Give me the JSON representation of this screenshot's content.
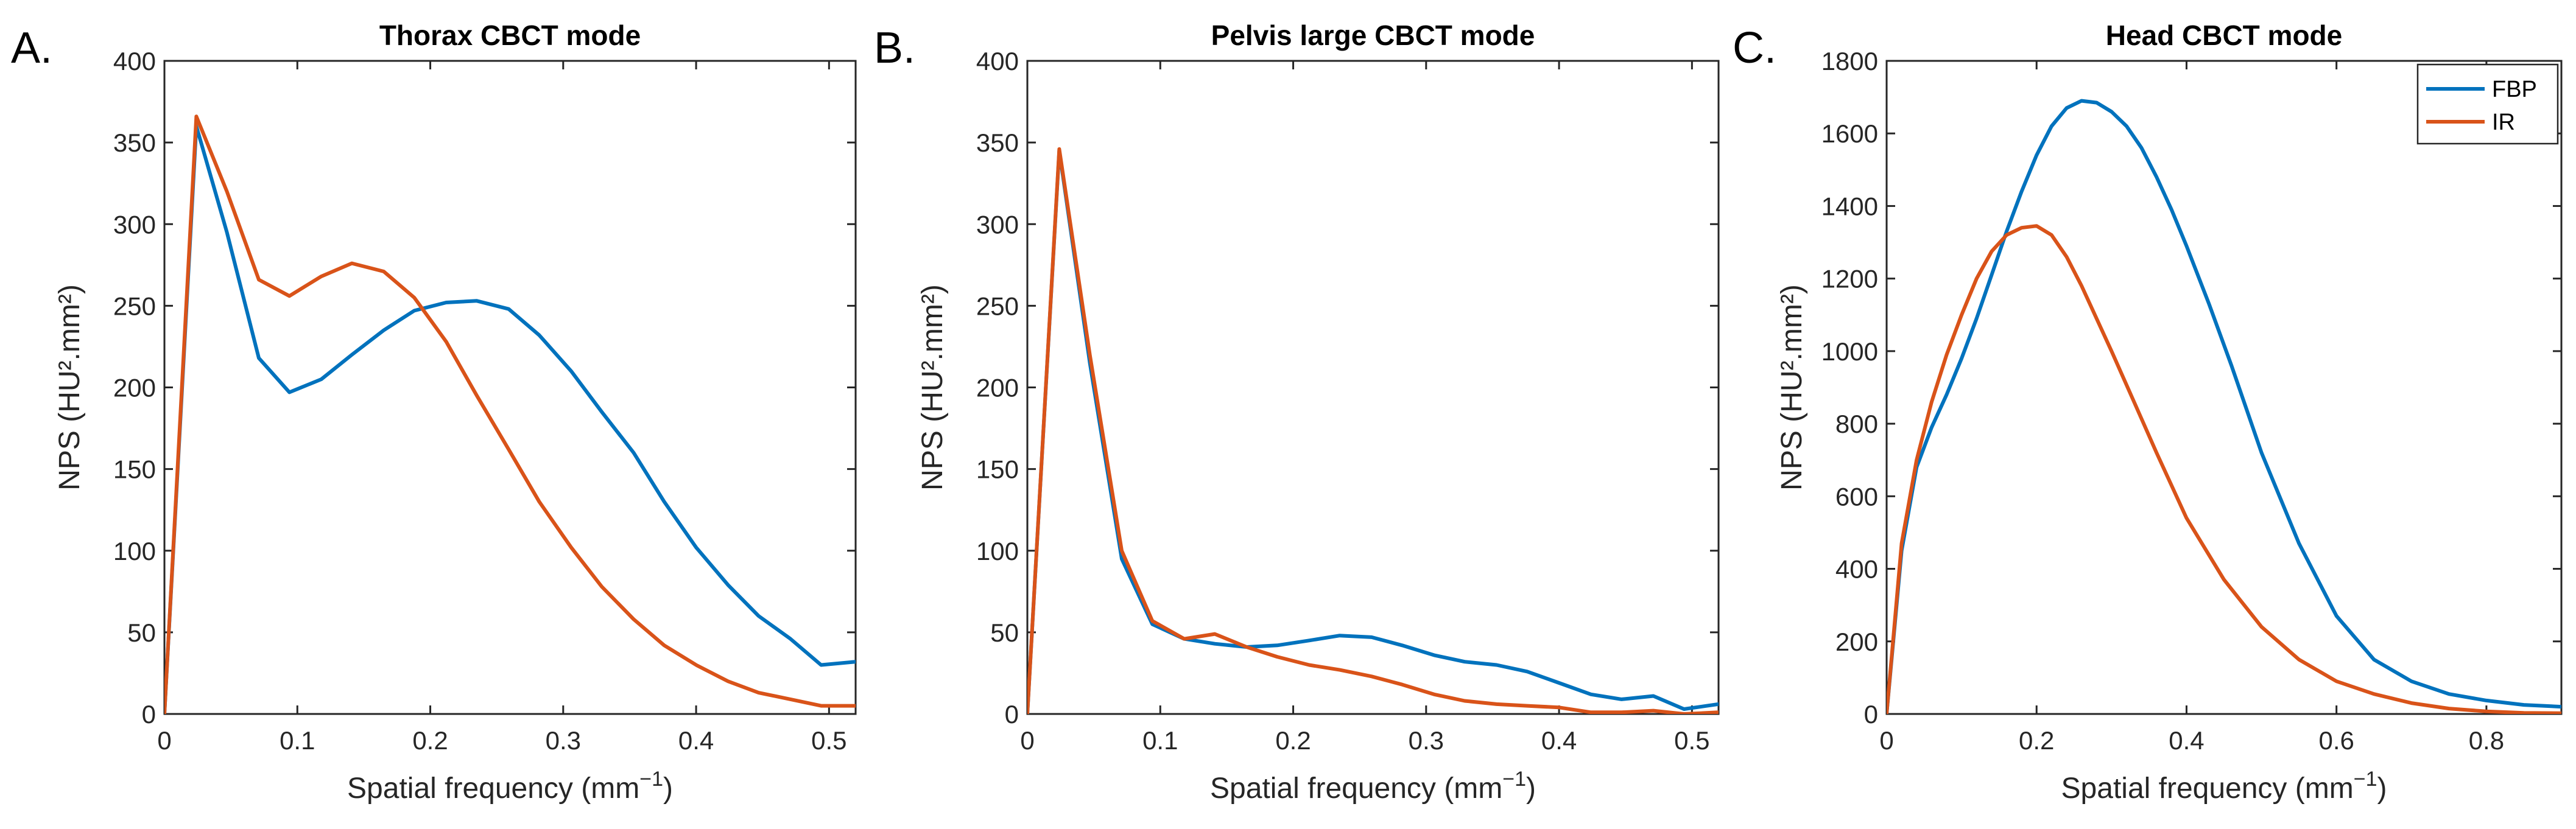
{
  "chart_data": [
    {
      "type": "line",
      "panel_letter": "A.",
      "title": "Thorax CBCT mode",
      "xlabel": "Spatial frequency (mm",
      "xlabel_sup": "−1",
      "xlabel_end": ")",
      "ylabel": "NPS (HU².mm²)",
      "xlim": [
        0,
        0.52
      ],
      "ylim": [
        0,
        400
      ],
      "xticks": [
        0,
        0.1,
        0.2,
        0.3,
        0.4,
        0.5
      ],
      "xtick_labels": [
        "0",
        "0.1",
        "0.2",
        "0.3",
        "0.4",
        "0.5"
      ],
      "yticks": [
        0,
        50,
        100,
        150,
        200,
        250,
        300,
        350,
        400
      ],
      "ytick_labels": [
        "0",
        "50",
        "100",
        "150",
        "200",
        "250",
        "300",
        "350",
        "400"
      ],
      "legend": null,
      "series": [
        {
          "name": "FBP",
          "color": "#0072BD",
          "x": [
            0,
            0.024,
            0.047,
            0.071,
            0.094,
            0.118,
            0.141,
            0.165,
            0.188,
            0.212,
            0.235,
            0.259,
            0.282,
            0.306,
            0.329,
            0.353,
            0.376,
            0.4,
            0.424,
            0.447,
            0.471,
            0.494,
            0.52
          ],
          "y": [
            0,
            360,
            295,
            218,
            197,
            205,
            220,
            235,
            247,
            252,
            253,
            248,
            232,
            210,
            185,
            160,
            130,
            102,
            79,
            60,
            46,
            30,
            32
          ]
        },
        {
          "name": "IR",
          "color": "#D95319",
          "x": [
            0,
            0.024,
            0.047,
            0.071,
            0.094,
            0.118,
            0.141,
            0.165,
            0.188,
            0.212,
            0.235,
            0.259,
            0.282,
            0.306,
            0.329,
            0.353,
            0.376,
            0.4,
            0.424,
            0.447,
            0.471,
            0.494,
            0.52
          ],
          "y": [
            0,
            366,
            320,
            266,
            256,
            268,
            276,
            271,
            255,
            228,
            195,
            162,
            130,
            102,
            78,
            58,
            42,
            30,
            20,
            13,
            9,
            5,
            5
          ]
        }
      ]
    },
    {
      "type": "line",
      "panel_letter": "B.",
      "title": "Pelvis large CBCT mode",
      "xlabel": "Spatial frequency (mm",
      "xlabel_sup": "−1",
      "xlabel_end": ")",
      "ylabel": "NPS (HU².mm²)",
      "xlim": [
        0,
        0.52
      ],
      "ylim": [
        0,
        400
      ],
      "xticks": [
        0,
        0.1,
        0.2,
        0.3,
        0.4,
        0.5
      ],
      "xtick_labels": [
        "0",
        "0.1",
        "0.2",
        "0.3",
        "0.4",
        "0.5"
      ],
      "yticks": [
        0,
        50,
        100,
        150,
        200,
        250,
        300,
        350,
        400
      ],
      "ytick_labels": [
        "0",
        "50",
        "100",
        "150",
        "200",
        "250",
        "300",
        "350",
        "400"
      ],
      "legend": null,
      "series": [
        {
          "name": "FBP",
          "color": "#0072BD",
          "x": [
            0,
            0.024,
            0.047,
            0.071,
            0.094,
            0.118,
            0.141,
            0.165,
            0.188,
            0.212,
            0.235,
            0.259,
            0.282,
            0.306,
            0.329,
            0.353,
            0.376,
            0.4,
            0.424,
            0.447,
            0.471,
            0.494,
            0.52
          ],
          "y": [
            0,
            345,
            215,
            95,
            55,
            46,
            43,
            41,
            42,
            45,
            48,
            47,
            42,
            36,
            32,
            30,
            26,
            19,
            12,
            9,
            11,
            3,
            6
          ]
        },
        {
          "name": "IR",
          "color": "#D95319",
          "x": [
            0,
            0.024,
            0.047,
            0.071,
            0.094,
            0.118,
            0.141,
            0.165,
            0.188,
            0.212,
            0.235,
            0.259,
            0.282,
            0.306,
            0.329,
            0.353,
            0.376,
            0.4,
            0.424,
            0.447,
            0.471,
            0.494,
            0.52
          ],
          "y": [
            0,
            346,
            220,
            100,
            57,
            46,
            49,
            41,
            35,
            30,
            27,
            23,
            18,
            12,
            8,
            6,
            5,
            4,
            1,
            1,
            2,
            0,
            1
          ]
        }
      ]
    },
    {
      "type": "line",
      "panel_letter": "C.",
      "title": "Head CBCT mode",
      "xlabel": "Spatial frequency (mm",
      "xlabel_sup": "−1",
      "xlabel_end": ")",
      "ylabel": "NPS (HU².mm²)",
      "xlim": [
        0,
        0.9
      ],
      "ylim": [
        0,
        1800
      ],
      "xticks": [
        0,
        0.2,
        0.4,
        0.6,
        0.8
      ],
      "xtick_labels": [
        "0",
        "0.2",
        "0.4",
        "0.6",
        "0.8"
      ],
      "yticks": [
        0,
        200,
        400,
        600,
        800,
        1000,
        1200,
        1400,
        1600,
        1800
      ],
      "ytick_labels": [
        "0",
        "200",
        "400",
        "600",
        "800",
        "1000",
        "1200",
        "1400",
        "1600",
        "1800"
      ],
      "legend": "top-right",
      "series": [
        {
          "name": "FBP",
          "color": "#0072BD",
          "x": [
            0,
            0.02,
            0.04,
            0.06,
            0.08,
            0.1,
            0.12,
            0.14,
            0.16,
            0.18,
            0.2,
            0.22,
            0.24,
            0.26,
            0.28,
            0.3,
            0.32,
            0.34,
            0.36,
            0.38,
            0.4,
            0.43,
            0.46,
            0.5,
            0.55,
            0.6,
            0.65,
            0.7,
            0.75,
            0.8,
            0.85,
            0.88,
            0.9
          ],
          "y": [
            0,
            450,
            680,
            790,
            880,
            980,
            1090,
            1210,
            1330,
            1440,
            1540,
            1620,
            1670,
            1690,
            1685,
            1660,
            1620,
            1560,
            1480,
            1390,
            1290,
            1130,
            960,
            720,
            470,
            270,
            150,
            90,
            55,
            37,
            25,
            22,
            20
          ]
        },
        {
          "name": "IR",
          "color": "#D95319",
          "x": [
            0,
            0.02,
            0.04,
            0.06,
            0.08,
            0.1,
            0.12,
            0.14,
            0.16,
            0.18,
            0.2,
            0.22,
            0.24,
            0.26,
            0.28,
            0.3,
            0.33,
            0.36,
            0.4,
            0.45,
            0.5,
            0.55,
            0.6,
            0.65,
            0.7,
            0.75,
            0.8,
            0.85,
            0.9
          ],
          "y": [
            0,
            470,
            700,
            860,
            990,
            1100,
            1200,
            1275,
            1320,
            1340,
            1345,
            1320,
            1260,
            1180,
            1090,
            1000,
            860,
            720,
            540,
            370,
            240,
            150,
            90,
            55,
            30,
            15,
            7,
            3,
            2
          ]
        }
      ]
    }
  ]
}
